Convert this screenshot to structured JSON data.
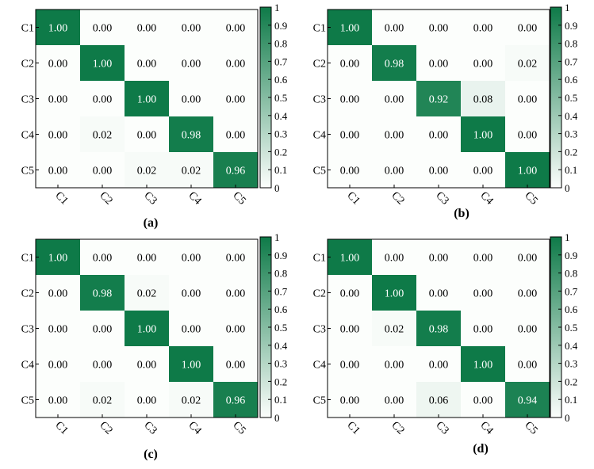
{
  "chart_data": [
    {
      "type": "heatmap",
      "title": "",
      "caption": "(a)",
      "rows": [
        "C1",
        "C2",
        "C3",
        "C4",
        "C5"
      ],
      "cols": [
        "C1",
        "C2",
        "C3",
        "C4",
        "C5"
      ],
      "values": [
        [
          1.0,
          0.0,
          0.0,
          0.0,
          0.0
        ],
        [
          0.0,
          1.0,
          0.0,
          0.0,
          0.0
        ],
        [
          0.0,
          0.0,
          1.0,
          0.0,
          0.0
        ],
        [
          0.0,
          0.02,
          0.0,
          0.98,
          0.0
        ],
        [
          0.0,
          0.0,
          0.02,
          0.02,
          0.96
        ]
      ],
      "colorbar": {
        "min": 0,
        "max": 1,
        "ticks": [
          "0",
          "0.1",
          "0.2",
          "0.3",
          "0.4",
          "0.5",
          "0.6",
          "0.7",
          "0.8",
          "0.9",
          "1"
        ]
      }
    },
    {
      "type": "heatmap",
      "title": "",
      "caption": "(b)",
      "rows": [
        "C1",
        "C2",
        "C3",
        "C4",
        "C5"
      ],
      "cols": [
        "C1",
        "C2",
        "C3",
        "C4",
        "C5"
      ],
      "values": [
        [
          1.0,
          0.0,
          0.0,
          0.0,
          0.0
        ],
        [
          0.0,
          0.98,
          0.0,
          0.0,
          0.02
        ],
        [
          0.0,
          0.0,
          0.92,
          0.08,
          0.0
        ],
        [
          0.0,
          0.0,
          0.0,
          1.0,
          0.0
        ],
        [
          0.0,
          0.0,
          0.0,
          0.0,
          1.0
        ]
      ],
      "colorbar": {
        "min": 0,
        "max": 1,
        "ticks": [
          "0",
          "0.1",
          "0.2",
          "0.3",
          "0.4",
          "0.5",
          "0.6",
          "0.7",
          "0.8",
          "0.9",
          "1"
        ]
      }
    },
    {
      "type": "heatmap",
      "title": "",
      "caption": "(c)",
      "rows": [
        "C1",
        "C2",
        "C3",
        "C4",
        "C5"
      ],
      "cols": [
        "C1",
        "C2",
        "C3",
        "C4",
        "C5"
      ],
      "values": [
        [
          1.0,
          0.0,
          0.0,
          0.0,
          0.0
        ],
        [
          0.0,
          0.98,
          0.02,
          0.0,
          0.0
        ],
        [
          0.0,
          0.0,
          1.0,
          0.0,
          0.0
        ],
        [
          0.0,
          0.0,
          0.0,
          1.0,
          0.0
        ],
        [
          0.0,
          0.02,
          0.0,
          0.02,
          0.96
        ]
      ],
      "colorbar": {
        "min": 0,
        "max": 1,
        "ticks": [
          "0",
          "0.1",
          "0.2",
          "0.3",
          "0.4",
          "0.5",
          "0.6",
          "0.7",
          "0.8",
          "0.9",
          "1"
        ]
      }
    },
    {
      "type": "heatmap",
      "title": "",
      "caption": "(d)",
      "rows": [
        "C1",
        "C2",
        "C3",
        "C4",
        "C5"
      ],
      "cols": [
        "C1",
        "C2",
        "C3",
        "C4",
        "C5"
      ],
      "values": [
        [
          1.0,
          0.0,
          0.0,
          0.0,
          0.0
        ],
        [
          0.0,
          1.0,
          0.0,
          0.0,
          0.0
        ],
        [
          0.0,
          0.02,
          0.98,
          0.0,
          0.0
        ],
        [
          0.0,
          0.0,
          0.0,
          1.0,
          0.0
        ],
        [
          0.0,
          0.0,
          0.06,
          0.0,
          0.94
        ]
      ],
      "colorbar": {
        "min": 0,
        "max": 1,
        "ticks": [
          "0",
          "0.1",
          "0.2",
          "0.3",
          "0.4",
          "0.5",
          "0.6",
          "0.7",
          "0.8",
          "0.9",
          "1"
        ]
      }
    }
  ],
  "colors": {
    "low": "#fcfefc",
    "high": "#0e7a48",
    "cell_text_dark": "#000000",
    "cell_text_light": "#ffffff",
    "axis": "#000000"
  }
}
